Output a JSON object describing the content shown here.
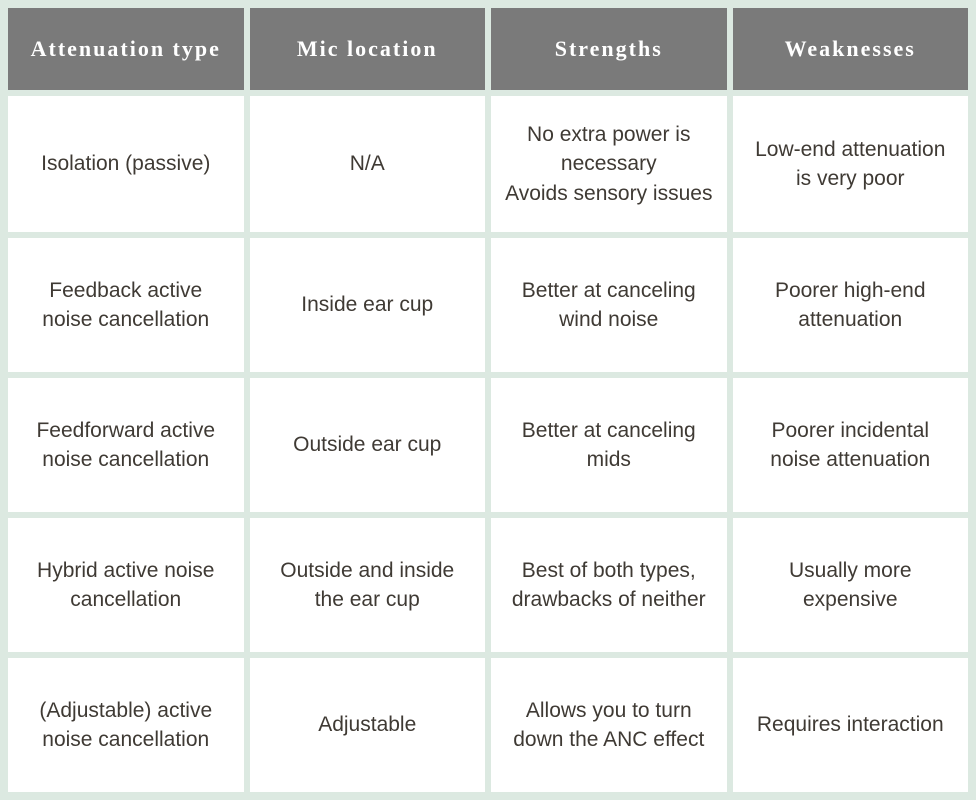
{
  "table": {
    "type": "table",
    "background_color": "#dce9e1",
    "cell_background": "#ffffff",
    "header_background": "#7a7a7a",
    "header_text_color": "#ffffff",
    "body_text_color": "#3f3a34",
    "header_fontsize": 22,
    "body_fontsize": 21,
    "cell_spacing": 6,
    "columns": [
      "Attenuation type",
      "Mic location",
      "Strengths",
      "Weaknesses"
    ],
    "rows": [
      {
        "attenuation_type": "Isolation (passive)",
        "mic_location": "N/A",
        "strengths": "No extra power is necessary\nAvoids sensory issues",
        "weaknesses": "Low-end attenuation is very poor"
      },
      {
        "attenuation_type": "Feedback active noise cancellation",
        "mic_location": "Inside ear cup",
        "strengths": "Better at canceling wind noise",
        "weaknesses": "Poorer high-end attenuation"
      },
      {
        "attenuation_type": "Feedforward active noise cancellation",
        "mic_location": "Outside ear cup",
        "strengths": "Better at canceling mids",
        "weaknesses": "Poorer incidental noise attenuation"
      },
      {
        "attenuation_type": "Hybrid active noise cancellation",
        "mic_location": "Outside and inside the ear cup",
        "strengths": "Best of both types, drawbacks of neither",
        "weaknesses": "Usually more expensive"
      },
      {
        "attenuation_type": "(Adjustable) active noise cancellation",
        "mic_location": "Adjustable",
        "strengths": "Allows you to turn down the ANC effect",
        "weaknesses": "Requires interaction"
      }
    ]
  }
}
